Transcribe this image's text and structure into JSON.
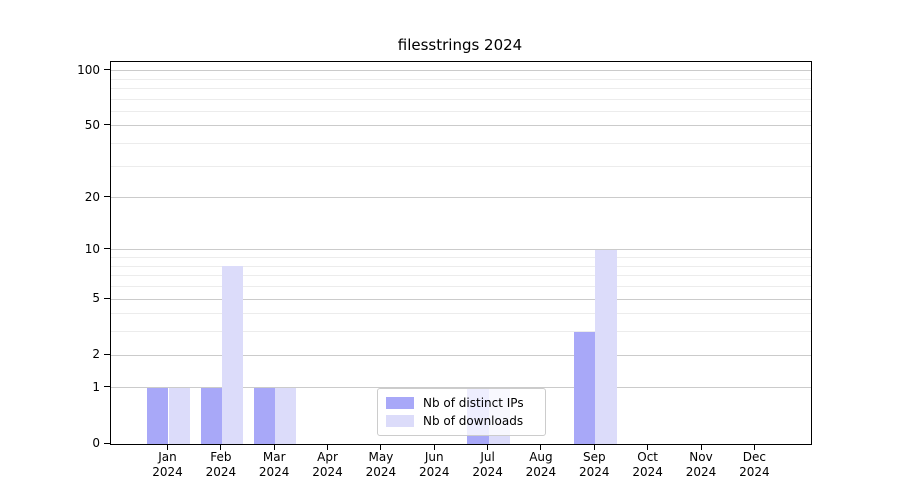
{
  "chart_data": {
    "type": "bar",
    "title": "filesstrings 2024",
    "x_labels": [
      {
        "line1": "Jan",
        "line2": "2024"
      },
      {
        "line1": "Feb",
        "line2": "2024"
      },
      {
        "line1": "Mar",
        "line2": "2024"
      },
      {
        "line1": "Apr",
        "line2": "2024"
      },
      {
        "line1": "May",
        "line2": "2024"
      },
      {
        "line1": "Jun",
        "line2": "2024"
      },
      {
        "line1": "Jul",
        "line2": "2024"
      },
      {
        "line1": "Aug",
        "line2": "2024"
      },
      {
        "line1": "Sep",
        "line2": "2024"
      },
      {
        "line1": "Oct",
        "line2": "2024"
      },
      {
        "line1": "Nov",
        "line2": "2024"
      },
      {
        "line1": "Dec",
        "line2": "2024"
      }
    ],
    "series": [
      {
        "name": "Nb of distinct IPs",
        "color": "#a8a8f8",
        "values": [
          1,
          1,
          1,
          0,
          0,
          0,
          1,
          0,
          3,
          0,
          0,
          0
        ]
      },
      {
        "name": "Nb of downloads",
        "color": "#dcdcfa",
        "values": [
          1,
          8,
          1,
          0,
          0,
          0,
          1,
          0,
          10,
          0,
          0,
          0
        ]
      }
    ],
    "y_scale": "log1p",
    "ylim": [
      0,
      100
    ],
    "y_ticks": [
      0,
      1,
      2,
      5,
      10,
      20,
      50,
      100
    ],
    "y_minor_ticks": [
      3,
      4,
      6,
      7,
      8,
      9,
      30,
      40,
      60,
      70,
      80,
      90
    ],
    "grid": "horizontal",
    "legend_position": "lower center"
  }
}
